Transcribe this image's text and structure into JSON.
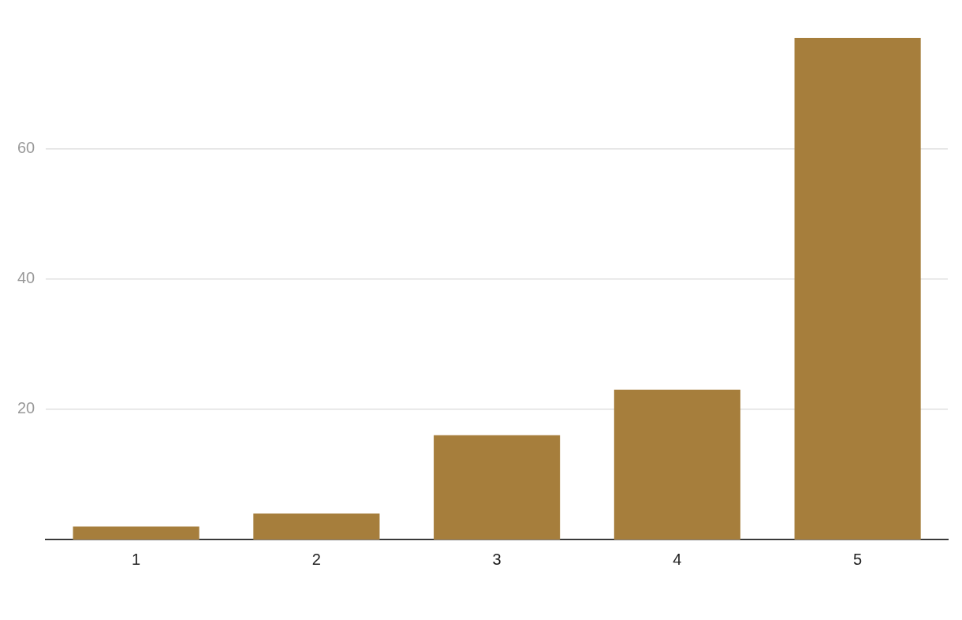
{
  "chart_data": {
    "type": "bar",
    "categories": [
      "1",
      "2",
      "3",
      "4",
      "5"
    ],
    "values": [
      2,
      4,
      16,
      23,
      77
    ],
    "color": "#a67e3c",
    "ylim": [
      0,
      77
    ],
    "yticks": [
      20,
      40,
      60
    ],
    "grid": "y",
    "legend": false
  }
}
